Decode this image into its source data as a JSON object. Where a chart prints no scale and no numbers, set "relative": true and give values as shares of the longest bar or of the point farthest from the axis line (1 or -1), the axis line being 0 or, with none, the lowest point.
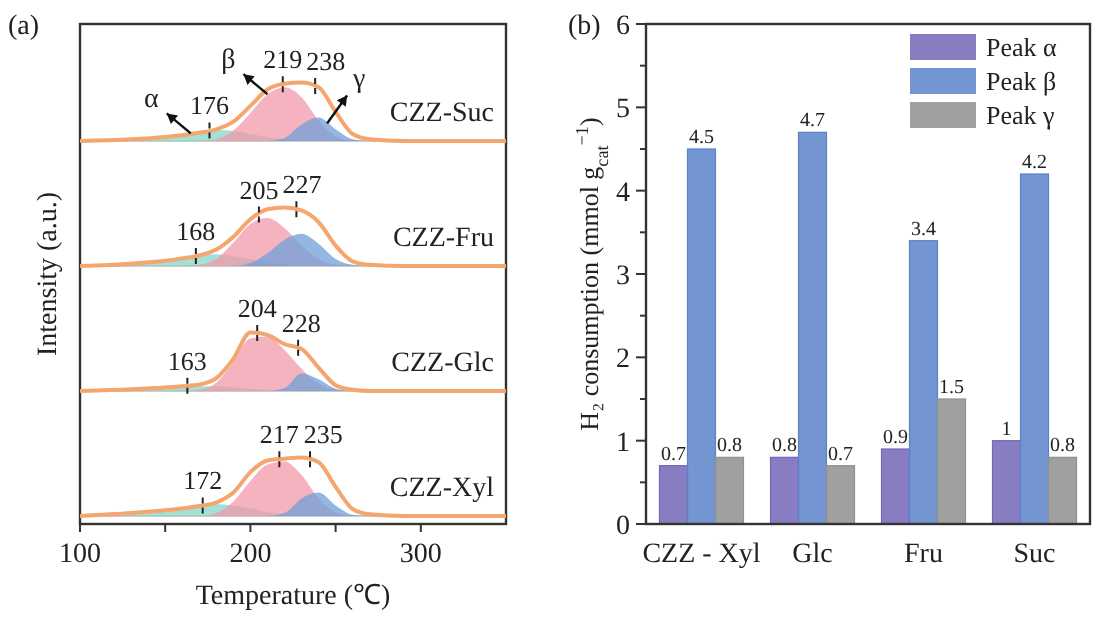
{
  "chart_data": [
    {
      "type": "line",
      "title": "(a)",
      "relative": true,
      "tick_labels": false,
      "xlim": [
        100,
        350
      ],
      "x": [
        100,
        130,
        150,
        160,
        170,
        180,
        190,
        200,
        210,
        220,
        230,
        240,
        250,
        260,
        270,
        290,
        320,
        350
      ],
      "series": [
        {
          "type": "area",
          "color": "#86d6c4",
          "values": [
            0,
            0.02,
            0.06,
            0.1,
            0.16,
            0.19,
            0.17,
            0.12,
            0.07,
            0.03,
            0.01,
            0,
            0,
            0,
            0,
            0,
            0,
            0
          ]
        },
        {
          "type": "area",
          "color": "#f19aab",
          "values": [
            0,
            0,
            0,
            0,
            0,
            0.03,
            0.18,
            0.48,
            0.8,
            0.92,
            0.75,
            0.35,
            0.08,
            0,
            0,
            0,
            0,
            0
          ]
        },
        {
          "type": "area",
          "color": "#6f9fd8",
          "values": [
            0,
            0,
            0,
            0,
            0,
            0,
            0,
            0,
            0,
            0.05,
            0.28,
            0.4,
            0.2,
            0.03,
            0,
            0,
            0,
            0
          ]
        },
        {
          "type": "line",
          "color": "#f5a56e",
          "values": [
            0,
            0.03,
            0.07,
            0.1,
            0.14,
            0.2,
            0.33,
            0.6,
            0.88,
            0.98,
            1,
            0.92,
            0.5,
            0.12,
            0.03,
            0,
            0,
            0
          ]
        }
      ],
      "annotations": [
        "CZZ-Suc",
        {
          "text": "176",
          "x": 176,
          "y": 0.18
        },
        {
          "text": "219",
          "x": 219,
          "y": 0.97
        },
        {
          "text": "238",
          "x": 238,
          "y": 0.94
        },
        {
          "text": "α",
          "x": 165,
          "y": 0.13
        },
        {
          "text": "β",
          "x": 210,
          "y": 0.8
        },
        {
          "text": "γ",
          "x": 245,
          "y": 0.3
        }
      ]
    },
    {
      "type": "line",
      "ylabel": "Intensity (a.u.)",
      "relative": true,
      "tick_labels": false,
      "xlim": [
        100,
        350
      ],
      "x": [
        100,
        130,
        150,
        160,
        170,
        180,
        190,
        200,
        210,
        220,
        230,
        240,
        250,
        260,
        270,
        290,
        320,
        350
      ],
      "series": [
        {
          "type": "area",
          "color": "#86d6c4",
          "values": [
            0,
            0.03,
            0.08,
            0.12,
            0.18,
            0.2,
            0.17,
            0.12,
            0.07,
            0.03,
            0.01,
            0,
            0,
            0,
            0,
            0,
            0,
            0
          ]
        },
        {
          "type": "area",
          "color": "#f19aab",
          "values": [
            0,
            0,
            0,
            0,
            0.02,
            0.12,
            0.4,
            0.72,
            0.82,
            0.65,
            0.35,
            0.12,
            0.02,
            0,
            0,
            0,
            0,
            0
          ]
        },
        {
          "type": "area",
          "color": "#6f9fd8",
          "values": [
            0,
            0,
            0,
            0,
            0,
            0,
            0,
            0.05,
            0.22,
            0.45,
            0.55,
            0.38,
            0.12,
            0.02,
            0,
            0,
            0,
            0
          ]
        },
        {
          "type": "line",
          "color": "#f5a56e",
          "values": [
            0,
            0.04,
            0.09,
            0.13,
            0.18,
            0.28,
            0.5,
            0.8,
            0.97,
            1,
            0.95,
            0.75,
            0.35,
            0.08,
            0.02,
            0,
            0,
            0
          ]
        }
      ],
      "annotations": [
        "CZZ-Fru",
        {
          "text": "168",
          "x": 168,
          "y": 0.17
        },
        {
          "text": "205",
          "x": 205,
          "y": 0.88
        },
        {
          "text": "227",
          "x": 227,
          "y": 0.97
        }
      ]
    },
    {
      "type": "line",
      "relative": true,
      "tick_labels": false,
      "xlim": [
        100,
        350
      ],
      "x": [
        100,
        130,
        150,
        160,
        170,
        180,
        190,
        200,
        210,
        220,
        230,
        240,
        250,
        260,
        270,
        290,
        320,
        350
      ],
      "series": [
        {
          "type": "area",
          "color": "#86d6c4",
          "values": [
            0,
            0.03,
            0.06,
            0.07,
            0.08,
            0.08,
            0.06,
            0.04,
            0.02,
            0.01,
            0,
            0,
            0,
            0,
            0,
            0,
            0,
            0
          ]
        },
        {
          "type": "area",
          "color": "#f19aab",
          "values": [
            0,
            0,
            0,
            0,
            0.02,
            0.14,
            0.5,
            0.9,
            0.93,
            0.7,
            0.38,
            0.12,
            0.02,
            0,
            0,
            0,
            0,
            0
          ]
        },
        {
          "type": "area",
          "color": "#6f9fd8",
          "values": [
            0,
            0,
            0,
            0,
            0,
            0,
            0,
            0,
            0,
            0.05,
            0.3,
            0.2,
            0.04,
            0,
            0,
            0,
            0,
            0
          ]
        },
        {
          "type": "line",
          "color": "#f5a56e",
          "values": [
            0,
            0.03,
            0.06,
            0.08,
            0.11,
            0.22,
            0.55,
            1,
            0.96,
            0.8,
            0.72,
            0.4,
            0.1,
            0.02,
            0,
            0,
            0,
            0
          ]
        }
      ],
      "annotations": [
        "CZZ-Glc",
        {
          "text": "163",
          "x": 163,
          "y": 0.09
        },
        {
          "text": "204",
          "x": 204,
          "y": 0.99
        },
        {
          "text": "228",
          "x": 228,
          "y": 0.74
        }
      ]
    },
    {
      "type": "line",
      "xlabel": "Temperature (℃)",
      "relative": true,
      "tick_labels": "x",
      "xlim": [
        100,
        350
      ],
      "xticks": [
        100,
        {
          "value": 150,
          "label": null
        },
        200,
        {
          "value": 250,
          "label": null
        },
        300
      ],
      "x": [
        100,
        130,
        150,
        160,
        170,
        180,
        190,
        200,
        210,
        220,
        230,
        240,
        250,
        260,
        270,
        290,
        320,
        350
      ],
      "series": [
        {
          "type": "area",
          "color": "#86d6c4",
          "values": [
            0,
            0.04,
            0.09,
            0.13,
            0.18,
            0.2,
            0.18,
            0.13,
            0.07,
            0.02,
            0,
            0,
            0,
            0,
            0,
            0,
            0,
            0
          ]
        },
        {
          "type": "area",
          "color": "#f19aab",
          "values": [
            0,
            0,
            0,
            0,
            0,
            0.05,
            0.25,
            0.6,
            0.88,
            0.93,
            0.7,
            0.3,
            0.06,
            0,
            0,
            0,
            0,
            0
          ]
        },
        {
          "type": "area",
          "color": "#6f9fd8",
          "values": [
            0,
            0,
            0,
            0,
            0,
            0,
            0,
            0,
            0,
            0.05,
            0.3,
            0.4,
            0.18,
            0.02,
            0,
            0,
            0,
            0
          ]
        },
        {
          "type": "line",
          "color": "#f5a56e",
          "values": [
            0,
            0.05,
            0.1,
            0.13,
            0.17,
            0.23,
            0.4,
            0.75,
            0.95,
            0.98,
            1,
            0.92,
            0.5,
            0.12,
            0.03,
            0,
            0,
            0
          ]
        }
      ],
      "annotations": [
        "CZZ-Xyl",
        {
          "text": "172",
          "x": 172,
          "y": 0.18
        },
        {
          "text": "217",
          "x": 217,
          "y": 0.97
        },
        {
          "text": "235",
          "x": 235,
          "y": 0.97
        }
      ]
    },
    {
      "type": "bar",
      "title": "(b)",
      "ylabel": "H₂ consumption (mmol g$_{cat}$$^{−1}$)",
      "categories": [
        "CZZ - Xyl",
        "Glc",
        "Fru",
        "Suc"
      ],
      "ylim": [
        0,
        6
      ],
      "yticks": [
        0,
        {
          "value": 0.5,
          "label": null
        },
        1,
        {
          "value": 1.5,
          "label": null
        },
        2,
        {
          "value": 2.5,
          "label": null
        },
        3,
        {
          "value": 3.5,
          "label": null
        },
        4,
        {
          "value": 4.5,
          "label": null
        },
        5,
        {
          "value": 5.5,
          "label": null
        },
        6
      ],
      "legend": "top right",
      "data_labels": true,
      "series": [
        {
          "name": "Peak α",
          "color": "#7466b6",
          "values": [
            0.7,
            0.8,
            0.9,
            1
          ]
        },
        {
          "name": "Peak β",
          "color": "#5b82c9",
          "values": [
            4.5,
            4.7,
            3.4,
            4.2
          ]
        },
        {
          "name": "Peak γ",
          "color": "#8f8f8f",
          "values": [
            0.8,
            0.7,
            1.5,
            0.8
          ]
        }
      ]
    }
  ]
}
